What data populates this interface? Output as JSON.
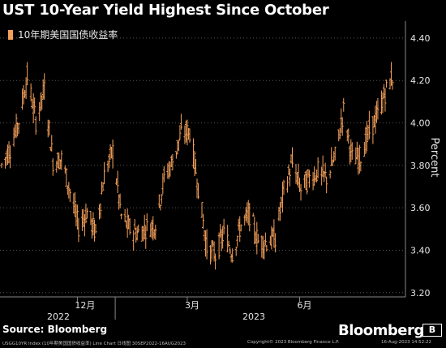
{
  "header": {
    "title": "UST 10-Year Yield Highest Since October"
  },
  "footer": {
    "source": "Source: Bloomberg",
    "brand": "Bloomberg",
    "badge": "B",
    "ticker_line": "USGG10YR Index (10年期美国国债收益率) Line Chart  日线图 30SEP2022-16AUG2023",
    "copyright": "Copyright© 2023 Bloomberg Finance L.P.",
    "timestamp": "16-Aug-2023 14:52:22"
  },
  "chart_data": {
    "type": "line",
    "legend": "10年期美国国债收益率",
    "legend_position": "top-left",
    "ylabel": "Percent",
    "ylim": [
      3.18,
      4.48
    ],
    "yticks": [
      "3.20",
      "3.40",
      "3.60",
      "3.80",
      "4.00",
      "4.20",
      "4.40"
    ],
    "grid": true,
    "xticks": [
      "12月",
      "3月",
      "6月"
    ],
    "year_labels": [
      "2022",
      "2023"
    ],
    "color": "#f5a05a",
    "x": [
      "2022-09-30",
      "2022-10-07",
      "2022-10-14",
      "2022-10-21",
      "2022-10-28",
      "2022-11-04",
      "2022-11-11",
      "2022-11-18",
      "2022-11-25",
      "2022-12-02",
      "2022-12-09",
      "2022-12-16",
      "2022-12-23",
      "2022-12-30",
      "2023-01-06",
      "2023-01-13",
      "2023-01-20",
      "2023-01-27",
      "2023-02-03",
      "2023-02-10",
      "2023-02-17",
      "2023-02-24",
      "2023-03-03",
      "2023-03-10",
      "2023-03-17",
      "2023-03-24",
      "2023-03-31",
      "2023-04-07",
      "2023-04-14",
      "2023-04-21",
      "2023-04-28",
      "2023-05-05",
      "2023-05-12",
      "2023-05-19",
      "2023-05-26",
      "2023-06-02",
      "2023-06-09",
      "2023-06-16",
      "2023-06-23",
      "2023-06-30",
      "2023-07-07",
      "2023-07-14",
      "2023-07-21",
      "2023-07-28",
      "2023-08-04",
      "2023-08-11",
      "2023-08-16"
    ],
    "y": [
      3.8,
      3.88,
      4.01,
      4.22,
      4.01,
      4.16,
      3.82,
      3.83,
      3.68,
      3.51,
      3.58,
      3.48,
      3.75,
      3.87,
      3.56,
      3.5,
      3.48,
      3.51,
      3.52,
      3.74,
      3.82,
      3.95,
      3.96,
      3.7,
      3.41,
      3.38,
      3.48,
      3.39,
      3.52,
      3.57,
      3.44,
      3.44,
      3.46,
      3.68,
      3.81,
      3.69,
      3.74,
      3.77,
      3.74,
      3.84,
      4.06,
      3.83,
      3.84,
      3.96,
      4.04,
      4.16,
      4.22
    ]
  }
}
